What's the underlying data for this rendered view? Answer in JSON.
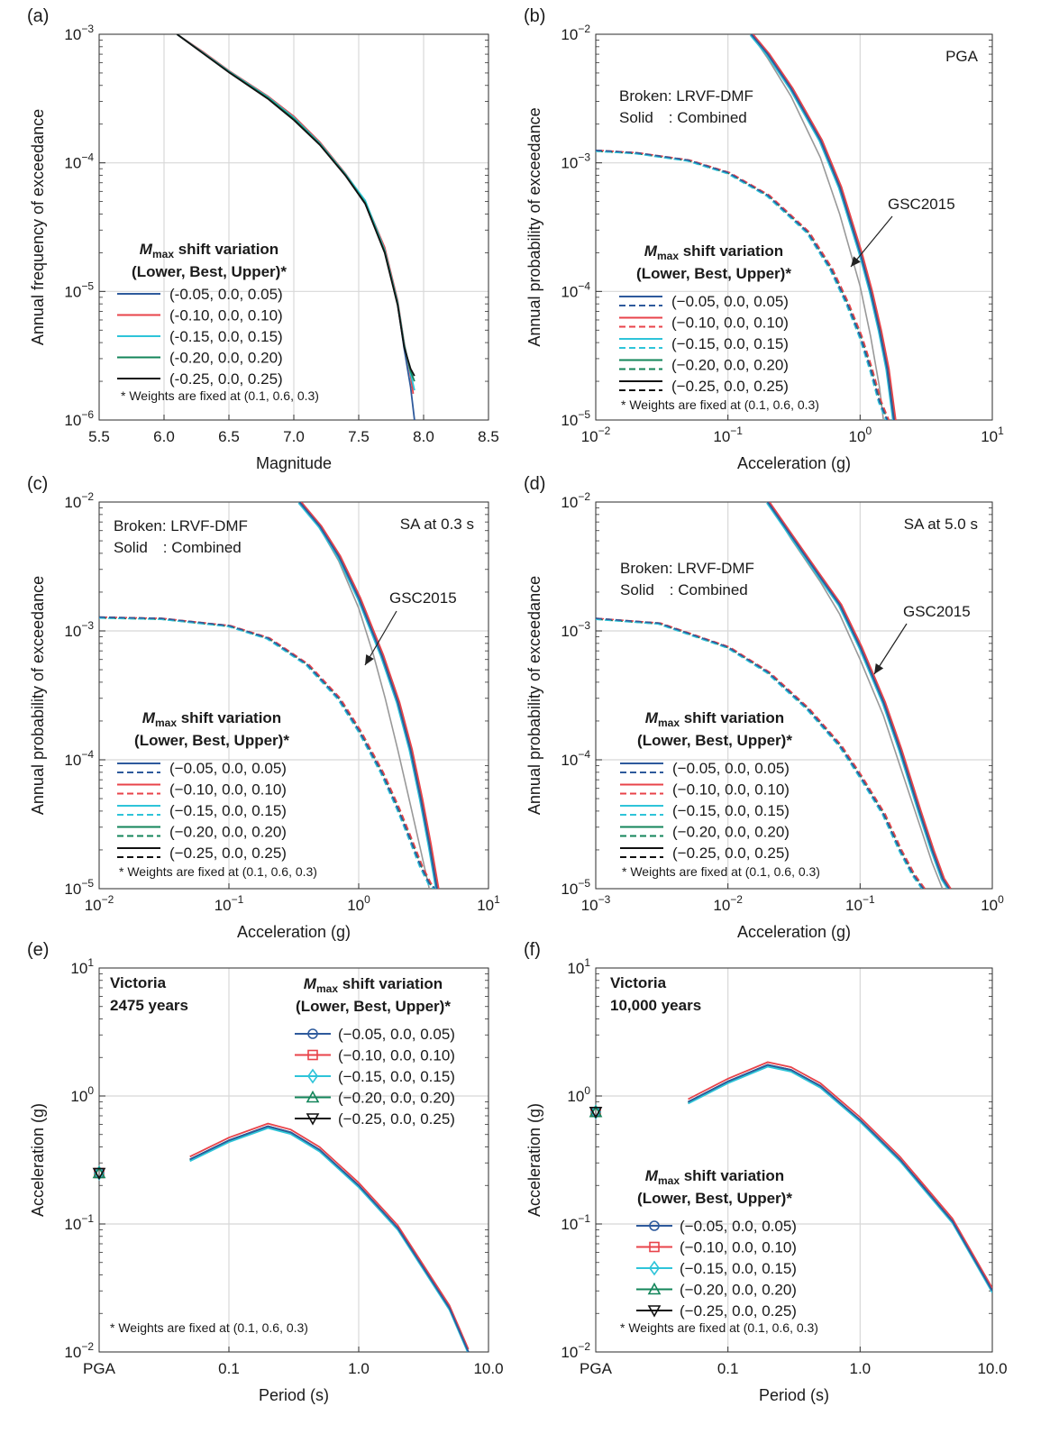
{
  "colors": {
    "s1": "#2e5a9c",
    "s2": "#e8434a",
    "s3": "#2ec4d9",
    "s4": "#13855a",
    "s5": "#111111",
    "gsc": "#999999",
    "grid": "#d8d8d8"
  },
  "legend": {
    "title_sym": "M",
    "title_sub": "max",
    "title_rest": " shift variation",
    "title_line2": "(Lower, Best, Upper)*",
    "entries_a": [
      "(-0.05, 0.0, 0.05)",
      "(-0.10, 0.0, 0.10)",
      "(-0.15, 0.0, 0.15)",
      "(-0.20, 0.0, 0.20)",
      "(-0.25, 0.0, 0.25)"
    ],
    "entries": [
      "(−0.05, 0.0, 0.05)",
      "(−0.10, 0.0, 0.10)",
      "(−0.15, 0.0, 0.15)",
      "(−0.20, 0.0, 0.20)",
      "(−0.25, 0.0, 0.25)"
    ],
    "note": "* Weights are fixed at (0.1, 0.6, 0.3)"
  },
  "text": {
    "broken": "Broken: LRVF-DMF",
    "solid": "Solid : Combined",
    "gsc": "GSC2015",
    "victoria": "Victoria",
    "years_e": "2475 years",
    "years_f": "10,000 years"
  },
  "chart_data": [
    {
      "id": "a",
      "panel_label": "(a)",
      "type": "line",
      "xlabel": "Magnitude",
      "ylabel": "Annual frequency of exceedance",
      "x_scale": "linear",
      "y_scale": "log",
      "xlim": [
        5.5,
        8.5
      ],
      "ylim": [
        1e-06,
        0.001
      ],
      "x_ticks": [
        "5.5",
        "6.0",
        "6.5",
        "7.0",
        "7.5",
        "8.0",
        "8.5"
      ],
      "y_ticks": [
        "10^-6",
        "10^-5",
        "10^-4",
        "10^-3"
      ],
      "series": [
        {
          "name": "(-0.05, 0.0, 0.05)",
          "x": [
            6.1,
            6.3,
            6.5,
            6.8,
            7.0,
            7.2,
            7.4,
            7.55,
            7.7,
            7.8,
            7.85,
            7.9,
            7.93
          ],
          "y": [
            0.001,
            0.00072,
            0.00051,
            0.00032,
            0.00022,
            0.00014,
            8e-05,
            4.8e-05,
            2.1e-05,
            8e-06,
            3.6e-06,
            1.8e-06,
            1e-06
          ]
        },
        {
          "name": "(-0.10, 0.0, 0.10)",
          "x": [
            6.1,
            6.3,
            6.5,
            6.8,
            7.0,
            7.2,
            7.4,
            7.55,
            7.7,
            7.8,
            7.85,
            7.9,
            7.92
          ],
          "y": [
            0.001,
            0.00073,
            0.00052,
            0.00033,
            0.00023,
            0.000145,
            8.2e-05,
            5e-05,
            2.2e-05,
            8.5e-06,
            4e-06,
            2.2e-06,
            1.6e-06
          ]
        },
        {
          "name": "(-0.15, 0.0, 0.15)",
          "x": [
            6.1,
            6.3,
            6.5,
            6.8,
            7.0,
            7.2,
            7.4,
            7.55,
            7.7,
            7.8,
            7.85,
            7.9,
            7.93
          ],
          "y": [
            0.001,
            0.00072,
            0.000515,
            0.000325,
            0.000225,
            0.000142,
            8.1e-05,
            5.1e-05,
            2.1e-05,
            8.2e-06,
            3.9e-06,
            2.3e-06,
            1.7e-06
          ]
        },
        {
          "name": "(-0.20, 0.0, 0.20)",
          "x": [
            6.1,
            6.3,
            6.5,
            6.8,
            7.0,
            7.2,
            7.4,
            7.55,
            7.7,
            7.8,
            7.85,
            7.9,
            7.93
          ],
          "y": [
            0.001,
            0.000715,
            0.00051,
            0.00032,
            0.00022,
            0.00014,
            8e-05,
            4.9e-05,
            2.05e-05,
            8e-06,
            3.8e-06,
            2.4e-06,
            2e-06
          ]
        },
        {
          "name": "(-0.25, 0.0, 0.25)",
          "x": [
            6.1,
            6.3,
            6.5,
            6.8,
            7.0,
            7.2,
            7.4,
            7.55,
            7.7,
            7.8,
            7.85,
            7.9,
            7.93
          ],
          "y": [
            0.001,
            0.00071,
            0.000505,
            0.000315,
            0.000215,
            0.000138,
            7.9e-05,
            4.8e-05,
            2e-05,
            7.8e-06,
            3.7e-06,
            2.5e-06,
            2.2e-06
          ]
        }
      ]
    },
    {
      "id": "b",
      "panel_label": "(b)",
      "corner_label": "PGA",
      "type": "line",
      "xlabel": "Acceleration (g)",
      "ylabel": "Annual probability of exceedance",
      "x_scale": "log",
      "y_scale": "log",
      "xlim": [
        0.01,
        10
      ],
      "ylim": [
        1e-05,
        0.01
      ],
      "x_ticks": [
        "10^-2",
        "10^-1",
        "10^0",
        "10^1"
      ],
      "y_ticks": [
        "10^-5",
        "10^-4",
        "10^-3",
        "10^-2"
      ],
      "solid_x": [
        0.15,
        0.2,
        0.3,
        0.5,
        0.7,
        1.0,
        1.2,
        1.4,
        1.6,
        1.8
      ],
      "solid_y": [
        0.01,
        0.007,
        0.0038,
        0.0015,
        0.00065,
        0.0002,
        0.0001,
        5e-05,
        2.5e-05,
        1e-05
      ],
      "broken_x": [
        0.01,
        0.02,
        0.05,
        0.1,
        0.2,
        0.4,
        0.6,
        0.8,
        1.0,
        1.2,
        1.4,
        1.6
      ],
      "broken_y": [
        0.00125,
        0.0012,
        0.00105,
        0.00084,
        0.00056,
        0.00029,
        0.00015,
        8e-05,
        4.5e-05,
        2.5e-05,
        1.4e-05,
        1e-05
      ],
      "gsc_x": [
        0.15,
        0.2,
        0.3,
        0.5,
        0.7,
        1.0,
        1.2,
        1.4,
        1.5
      ],
      "gsc_y": [
        0.01,
        0.0065,
        0.0033,
        0.0011,
        0.0004,
        0.00011,
        4.5e-05,
        1.8e-05,
        1e-05
      ]
    },
    {
      "id": "c",
      "panel_label": "(c)",
      "corner_label": "SA at 0.3 s",
      "type": "line",
      "xlabel": "Acceleration (g)",
      "ylabel": "Annual probability of exceedance",
      "x_scale": "log",
      "y_scale": "log",
      "xlim": [
        0.01,
        10
      ],
      "ylim": [
        1e-05,
        0.01
      ],
      "x_ticks": [
        "10^-2",
        "10^-1",
        "10^0",
        "10^1"
      ],
      "y_ticks": [
        "10^-5",
        "10^-4",
        "10^-3",
        "10^-2"
      ],
      "solid_x": [
        0.35,
        0.5,
        0.7,
        1.0,
        1.5,
        2.0,
        2.5,
        3.0,
        3.5,
        4.0
      ],
      "solid_y": [
        0.01,
        0.0065,
        0.0038,
        0.0018,
        0.00065,
        0.00028,
        0.00012,
        5e-05,
        2.2e-05,
        1e-05
      ],
      "broken_x": [
        0.01,
        0.03,
        0.1,
        0.2,
        0.4,
        0.7,
        1.0,
        1.5,
        2.0,
        2.5,
        3.0,
        3.5,
        3.9
      ],
      "broken_y": [
        0.00128,
        0.00125,
        0.0011,
        0.00088,
        0.00055,
        0.0003,
        0.00017,
        8e-05,
        4.2e-05,
        2.4e-05,
        1.5e-05,
        1.1e-05,
        1e-05
      ],
      "gsc_x": [
        0.35,
        0.5,
        0.7,
        1.0,
        1.3,
        1.6,
        2.0,
        2.5,
        3.0,
        3.5
      ],
      "gsc_y": [
        0.01,
        0.0063,
        0.0035,
        0.0015,
        0.00065,
        0.0003,
        0.00012,
        4.5e-05,
        2e-05,
        1e-05
      ]
    },
    {
      "id": "d",
      "panel_label": "(d)",
      "corner_label": "SA at 5.0 s",
      "type": "line",
      "xlabel": "Acceleration (g)",
      "ylabel": "Annual probability of exceedance",
      "x_scale": "log",
      "y_scale": "log",
      "xlim": [
        0.001,
        1
      ],
      "ylim": [
        1e-05,
        0.01
      ],
      "x_ticks": [
        "10^-3",
        "10^-2",
        "10^-1",
        "10^0"
      ],
      "y_ticks": [
        "10^-5",
        "10^-4",
        "10^-3",
        "10^-2"
      ],
      "solid_x": [
        0.02,
        0.03,
        0.05,
        0.07,
        0.1,
        0.15,
        0.2,
        0.28,
        0.35,
        0.42,
        0.47
      ],
      "solid_y": [
        0.01,
        0.0055,
        0.0026,
        0.0016,
        0.00075,
        0.00028,
        0.00012,
        4e-05,
        2e-05,
        1.2e-05,
        1e-05
      ],
      "broken_x": [
        0.001,
        0.003,
        0.01,
        0.02,
        0.04,
        0.07,
        0.1,
        0.15,
        0.2,
        0.25,
        0.3
      ],
      "broken_y": [
        0.00125,
        0.00115,
        0.00075,
        0.00048,
        0.00025,
        0.00013,
        7.5e-05,
        3.8e-05,
        2e-05,
        1.3e-05,
        1e-05
      ],
      "gsc_x": [
        0.02,
        0.03,
        0.05,
        0.07,
        0.1,
        0.15,
        0.2,
        0.28,
        0.35,
        0.42
      ],
      "gsc_y": [
        0.01,
        0.0052,
        0.0024,
        0.00135,
        0.0006,
        0.00022,
        9e-05,
        3.2e-05,
        1.6e-05,
        1e-05
      ]
    },
    {
      "id": "e",
      "panel_label": "(e)",
      "type": "line",
      "xlabel": "Period (s)",
      "ylabel": "Acceleration (g)",
      "x_scale": "log",
      "y_scale": "log",
      "xlim": [
        "PGA",
        10
      ],
      "ylim": [
        0.01,
        10
      ],
      "x_ticks": [
        "PGA",
        "0.1",
        "1.0",
        "10.0"
      ],
      "y_ticks": [
        "10^-2",
        "10^-1",
        "10^0",
        "10^1"
      ],
      "pga_value": 0.25,
      "periods": [
        0.05,
        0.1,
        0.2,
        0.3,
        0.5,
        1.0,
        2.0,
        5.0,
        7.0
      ],
      "values": [
        0.32,
        0.45,
        0.58,
        0.52,
        0.38,
        0.2,
        0.093,
        0.022,
        0.01
      ]
    },
    {
      "id": "f",
      "panel_label": "(f)",
      "type": "line",
      "xlabel": "Period (s)",
      "ylabel": "Acceleration (g)",
      "x_scale": "log",
      "y_scale": "log",
      "xlim": [
        "PGA",
        10
      ],
      "ylim": [
        0.01,
        10
      ],
      "x_ticks": [
        "PGA",
        "0.1",
        "1.0",
        "10.0"
      ],
      "y_ticks": [
        "10^-2",
        "10^-1",
        "10^0",
        "10^1"
      ],
      "pga_value": 0.75,
      "periods": [
        0.05,
        0.1,
        0.2,
        0.3,
        0.5,
        1.0,
        2.0,
        5.0,
        10.0
      ],
      "values": [
        0.9,
        1.3,
        1.75,
        1.6,
        1.2,
        0.65,
        0.32,
        0.105,
        0.03
      ]
    }
  ]
}
